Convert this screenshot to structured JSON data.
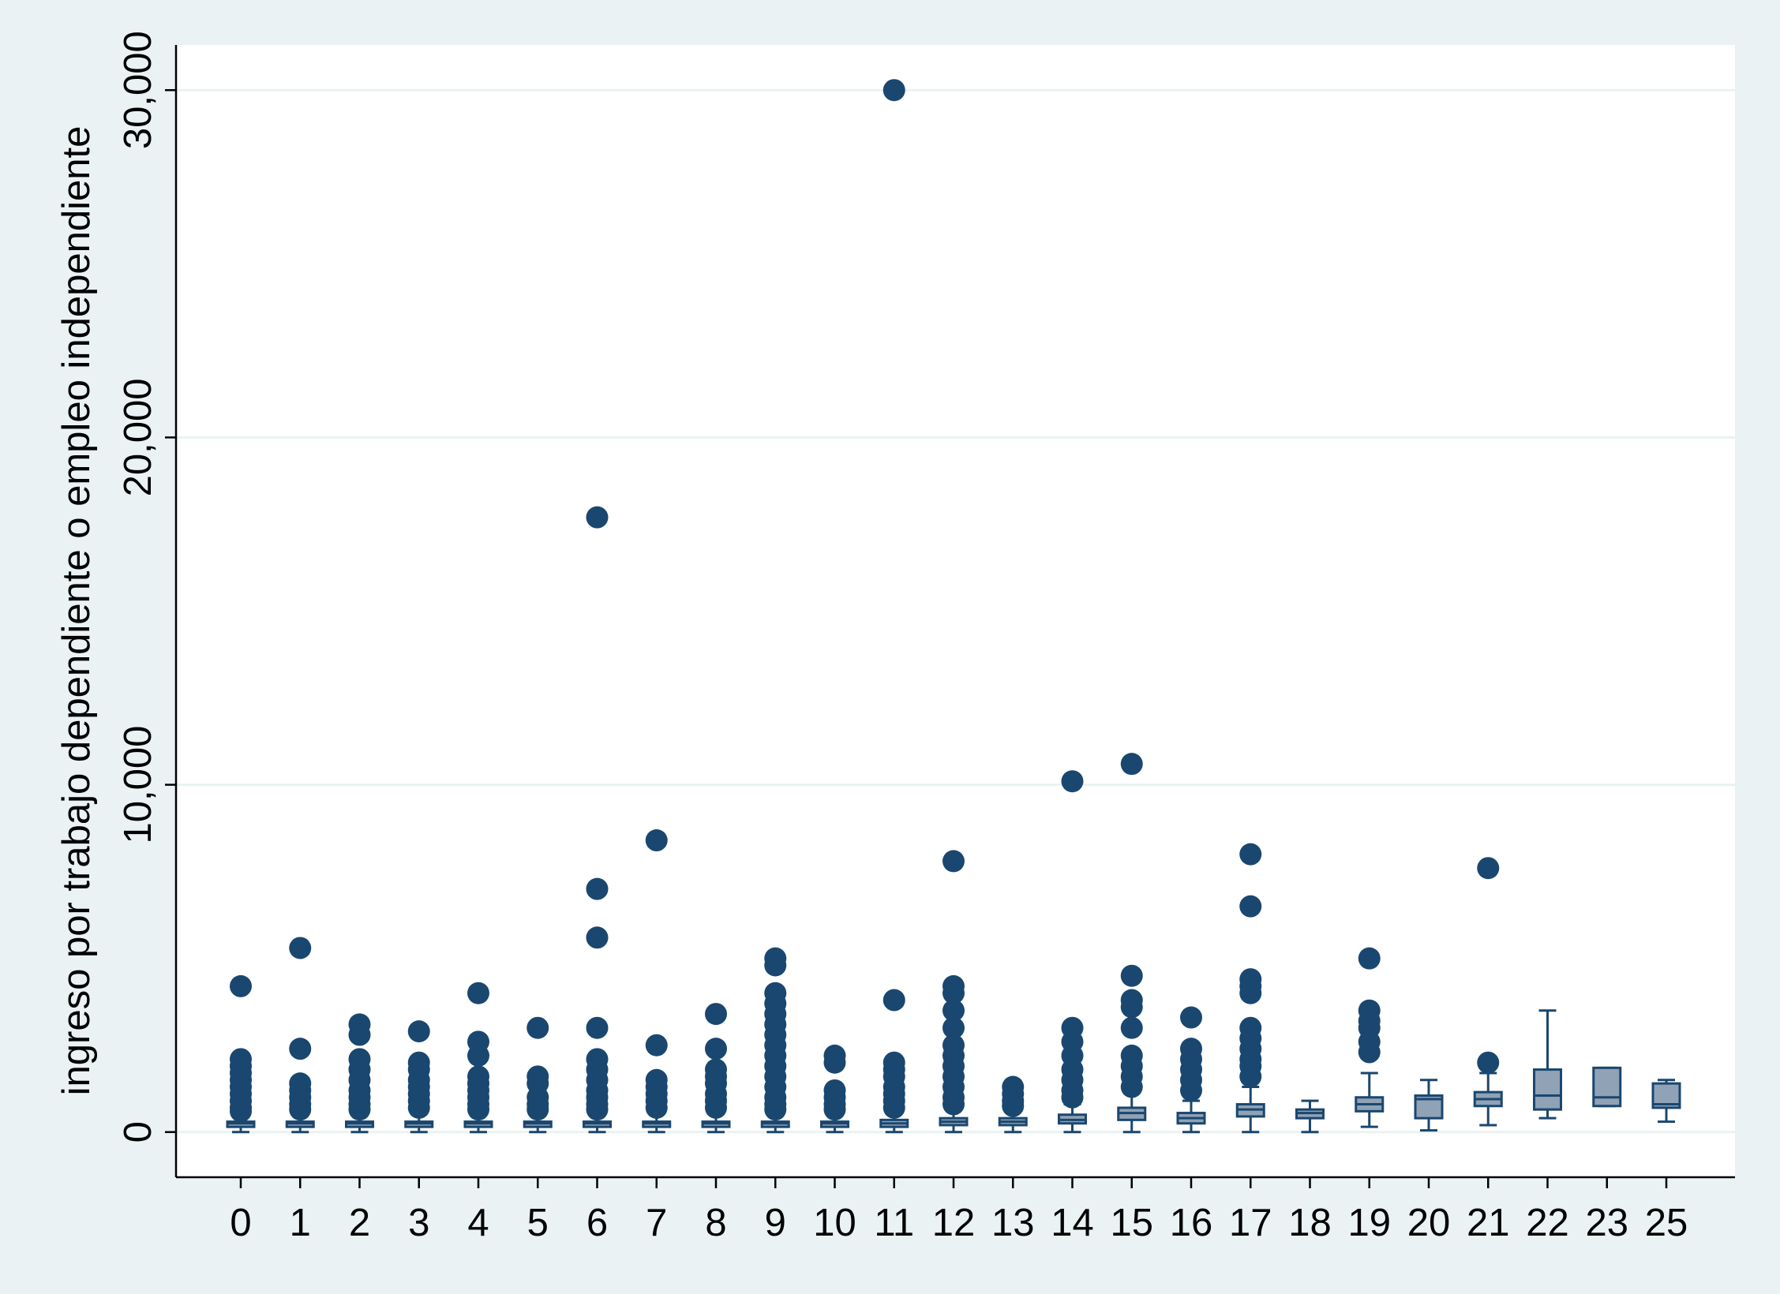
{
  "chart_data": {
    "type": "box",
    "title": "",
    "xlabel": "",
    "ylabel": "ingreso por trabajo dependiente o empleo independiente",
    "ylim": [
      -1300,
      31300
    ],
    "yticks": [
      0,
      10000,
      20000,
      30000
    ],
    "ytick_labels": [
      "0",
      "10,000",
      "20,000",
      "30,000"
    ],
    "grid": true,
    "colors": {
      "background": "#eaf2f3",
      "plot_area": "#ffffff",
      "gridline": "#eaf2f3",
      "marker": "#1a476f",
      "box_fill": "#90a2b6",
      "box_stroke": "#1a476f"
    },
    "categories": [
      "0",
      "1",
      "2",
      "3",
      "4",
      "5",
      "6",
      "7",
      "8",
      "9",
      "10",
      "11",
      "12",
      "13",
      "14",
      "15",
      "16",
      "17",
      "18",
      "19",
      "20",
      "21",
      "22",
      "23",
      "25"
    ],
    "boxes": [
      {
        "cat": "0",
        "lw": 0,
        "q1": 150,
        "med": 250,
        "q3": 300,
        "uw": 600,
        "outliers": [
          4200,
          2100,
          1900,
          1700,
          1500,
          1300,
          1100,
          900,
          700,
          600
        ]
      },
      {
        "cat": "1",
        "lw": 0,
        "q1": 150,
        "med": 250,
        "q3": 300,
        "uw": 600,
        "outliers": [
          5300,
          2400,
          1400,
          1200,
          1000,
          800,
          650
        ]
      },
      {
        "cat": "2",
        "lw": 0,
        "q1": 150,
        "med": 250,
        "q3": 300,
        "uw": 600,
        "outliers": [
          3100,
          2800,
          2100,
          1800,
          1500,
          1200,
          1000,
          800,
          650
        ]
      },
      {
        "cat": "3",
        "lw": 0,
        "q1": 150,
        "med": 250,
        "q3": 300,
        "uw": 600,
        "outliers": [
          2900,
          2000,
          1800,
          1500,
          1300,
          1100,
          900,
          700
        ]
      },
      {
        "cat": "4",
        "lw": 0,
        "q1": 150,
        "med": 250,
        "q3": 300,
        "uw": 600,
        "outliers": [
          4000,
          2600,
          2200,
          1600,
          1400,
          1200,
          1000,
          800,
          650
        ]
      },
      {
        "cat": "5",
        "lw": 0,
        "q1": 150,
        "med": 250,
        "q3": 300,
        "uw": 600,
        "outliers": [
          3000,
          1600,
          1400,
          1000,
          800,
          650
        ]
      },
      {
        "cat": "6",
        "lw": 0,
        "q1": 150,
        "med": 250,
        "q3": 300,
        "uw": 600,
        "outliers": [
          17700,
          7000,
          5600,
          3000,
          2100,
          1800,
          1500,
          1200,
          1000,
          800,
          650
        ]
      },
      {
        "cat": "7",
        "lw": 0,
        "q1": 150,
        "med": 250,
        "q3": 300,
        "uw": 600,
        "outliers": [
          8400,
          2500,
          1500,
          1300,
          1100,
          900,
          700
        ]
      },
      {
        "cat": "8",
        "lw": 0,
        "q1": 150,
        "med": 250,
        "q3": 300,
        "uw": 600,
        "outliers": [
          3400,
          2400,
          1800,
          1600,
          1400,
          1100,
          900,
          700
        ]
      },
      {
        "cat": "9",
        "lw": 0,
        "q1": 150,
        "med": 250,
        "q3": 300,
        "uw": 600,
        "outliers": [
          5000,
          4800,
          4000,
          3700,
          3400,
          3100,
          2800,
          2500,
          2200,
          1900,
          1600,
          1300,
          1000,
          800,
          650
        ]
      },
      {
        "cat": "10",
        "lw": 0,
        "q1": 150,
        "med": 250,
        "q3": 300,
        "uw": 600,
        "outliers": [
          2200,
          2000,
          1200,
          1000,
          800,
          650
        ]
      },
      {
        "cat": "11",
        "lw": 0,
        "q1": 150,
        "med": 250,
        "q3": 350,
        "uw": 650,
        "outliers": [
          30000,
          3800,
          2000,
          1800,
          1600,
          1300,
          1100,
          900,
          700
        ]
      },
      {
        "cat": "12",
        "lw": 0,
        "q1": 200,
        "med": 300,
        "q3": 400,
        "uw": 700,
        "outliers": [
          7800,
          4200,
          4000,
          3500,
          3000,
          2500,
          2200,
          1900,
          1600,
          1300,
          1000,
          800
        ]
      },
      {
        "cat": "13",
        "lw": 0,
        "q1": 200,
        "med": 300,
        "q3": 400,
        "uw": 600,
        "outliers": [
          1300,
          1100,
          900,
          750
        ]
      },
      {
        "cat": "14",
        "lw": 0,
        "q1": 250,
        "med": 350,
        "q3": 500,
        "uw": 800,
        "outliers": [
          10100,
          3000,
          2600,
          2200,
          1800,
          1500,
          1200,
          1000
        ]
      },
      {
        "cat": "15",
        "lw": 0,
        "q1": 350,
        "med": 550,
        "q3": 700,
        "uw": 1200,
        "outliers": [
          10600,
          4500,
          3800,
          3600,
          3000,
          2200,
          1900,
          1600,
          1300
        ]
      },
      {
        "cat": "16",
        "lw": 0,
        "q1": 250,
        "med": 400,
        "q3": 550,
        "uw": 900,
        "outliers": [
          3300,
          2400,
          2100,
          1800,
          1500,
          1200
        ]
      },
      {
        "cat": "17",
        "lw": 0,
        "q1": 450,
        "med": 650,
        "q3": 800,
        "uw": 1300,
        "outliers": [
          8000,
          6500,
          4400,
          4200,
          4000,
          3000,
          2700,
          2400,
          2100,
          1900,
          1600
        ]
      },
      {
        "cat": "18",
        "lw": 0,
        "q1": 400,
        "med": 550,
        "q3": 650,
        "uw": 900,
        "outliers": []
      },
      {
        "cat": "19",
        "lw": 150,
        "q1": 600,
        "med": 800,
        "q3": 1000,
        "uw": 1700,
        "outliers": [
          5000,
          3500,
          3200,
          3000,
          2600,
          2300
        ]
      },
      {
        "cat": "20",
        "lw": 50,
        "q1": 400,
        "med": 950,
        "q3": 1050,
        "uw": 1500,
        "outliers": []
      },
      {
        "cat": "21",
        "lw": 200,
        "q1": 750,
        "med": 950,
        "q3": 1150,
        "uw": 1700,
        "outliers": [
          7600,
          2000
        ]
      },
      {
        "cat": "22",
        "lw": 400,
        "q1": 650,
        "med": 1050,
        "q3": 1800,
        "uw": 3500,
        "outliers": []
      },
      {
        "cat": "23",
        "lw": 750,
        "q1": 750,
        "med": 1000,
        "q3": 1850,
        "uw": 1850,
        "outliers": []
      },
      {
        "cat": "25",
        "lw": 300,
        "q1": 700,
        "med": 800,
        "q3": 1400,
        "uw": 1500,
        "outliers": []
      }
    ]
  }
}
